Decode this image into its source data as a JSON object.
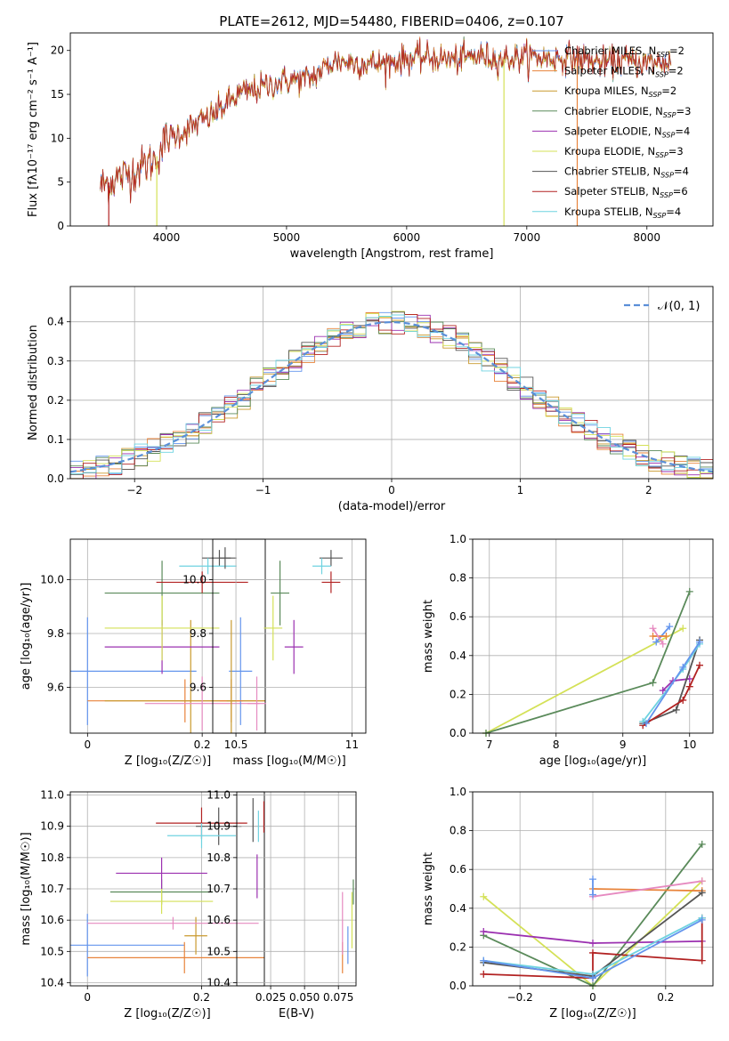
{
  "figure_title": "PLATE=2612, MJD=54480, FIBERID=0406, z=0.107",
  "colors": {
    "Chabrier MILES": "#6495ed",
    "Salpeter MILES": "#e8833a",
    "Kroupa MILES": "#c99a2e",
    "Chabrier ELODIE": "#5a8a5a",
    "Salpeter ELODIE": "#9b30b0",
    "Kroupa ELODIE": "#d4e157",
    "Chabrier STELIB": "#555555",
    "Salpeter STELIB": "#b22222",
    "Kroupa STELIB": "#6fd3e0",
    "pink": "#e68ac0"
  },
  "chart_data": [
    {
      "id": "spectrum",
      "type": "line",
      "xlabel": "wavelength [Angstrom, rest frame]",
      "ylabel": "Flux [fλ10⁻¹⁷ erg cm⁻² s⁻¹ A⁻¹]",
      "xlim": [
        3200,
        8550
      ],
      "ylim": [
        0,
        22
      ],
      "xticks": [
        4000,
        5000,
        6000,
        7000,
        8000
      ],
      "yticks": [
        0,
        5,
        10,
        15,
        20
      ],
      "continuum": [
        [
          3450,
          4.5
        ],
        [
          3600,
          5.5
        ],
        [
          3700,
          6
        ],
        [
          3800,
          6.8
        ],
        [
          3900,
          7.5
        ],
        [
          4000,
          9.8
        ],
        [
          4200,
          11.2
        ],
        [
          4400,
          12.8
        ],
        [
          4600,
          15
        ],
        [
          4800,
          15.8
        ],
        [
          5000,
          16.6
        ],
        [
          5200,
          16.8
        ],
        [
          5400,
          18.8
        ],
        [
          5600,
          18.6
        ],
        [
          5800,
          18.5
        ],
        [
          6000,
          19.1
        ],
        [
          6200,
          19.2
        ],
        [
          6400,
          18.9
        ],
        [
          6600,
          19.4
        ],
        [
          6800,
          19
        ],
        [
          7000,
          19.3
        ],
        [
          7200,
          19.1
        ],
        [
          7400,
          19.2
        ],
        [
          7600,
          18.6
        ],
        [
          7800,
          18.8
        ],
        [
          8000,
          18.6
        ],
        [
          8200,
          18.7
        ]
      ],
      "legend": {
        "placement": "top-right",
        "entries": [
          {
            "label": "Chabrier MILES, N",
            "sub": "SSP",
            "tail": "=2"
          },
          {
            "label": "Salpeter MILES, N",
            "sub": "SSP",
            "tail": "=2"
          },
          {
            "label": "Kroupa MILES, N",
            "sub": "SSP",
            "tail": "=2"
          },
          {
            "label": "Chabrier ELODIE, N",
            "sub": "SSP",
            "tail": "=3"
          },
          {
            "label": "Salpeter ELODIE, N",
            "sub": "SSP",
            "tail": "=4"
          },
          {
            "label": "Kroupa ELODIE, N",
            "sub": "SSP",
            "tail": "=3"
          },
          {
            "label": "Chabrier STELIB, N",
            "sub": "SSP",
            "tail": "=4"
          },
          {
            "label": "Salpeter STELIB, N",
            "sub": "SSP",
            "tail": "=6"
          },
          {
            "label": "Kroupa STELIB, N",
            "sub": "SSP",
            "tail": "=4"
          }
        ]
      }
    },
    {
      "id": "residuals",
      "type": "histogram",
      "xlabel": "(data-model)/error",
      "ylabel": "Normed distribution",
      "xlim": [
        -2.5,
        2.5
      ],
      "ylim": [
        0,
        0.49
      ],
      "xticks": [
        -2,
        -1,
        0,
        1,
        2
      ],
      "yticks": [
        0.0,
        0.1,
        0.2,
        0.3,
        0.4
      ],
      "grid": true,
      "legend_label": "𝒩(0, 1)",
      "gaussian": {
        "mu": 0,
        "sigma": 1
      }
    },
    {
      "id": "age_vs_Z",
      "type": "errorbar",
      "xlabel": "Z [log₁₀(Z/Z☉)]",
      "ylabel": "age  [log₁₀(age/yr)]",
      "xlim": [
        -0.03,
        0.31
      ],
      "ylim": [
        9.43,
        10.15
      ],
      "xticks": [
        0.0,
        0.2
      ],
      "yticks": [
        9.6,
        9.8,
        10.0
      ],
      "grid": true,
      "points": [
        {
          "c": "Chabrier MILES",
          "x": 0.0,
          "y": 9.66,
          "xerr": 0.19,
          "yerr": 0.2
        },
        {
          "c": "Salpeter MILES",
          "x": 0.17,
          "y": 9.55,
          "xerr": 0.17,
          "yerr": 0.08
        },
        {
          "c": "Kroupa MILES",
          "x": 0.18,
          "y": 9.55,
          "xerr": 0.15,
          "yerr": 0.3
        },
        {
          "c": "Chabrier ELODIE",
          "x": 0.13,
          "y": 9.95,
          "xerr": 0.1,
          "yerr": 0.12
        },
        {
          "c": "Salpeter ELODIE",
          "x": 0.13,
          "y": 9.75,
          "xerr": 0.1,
          "yerr": 0.1
        },
        {
          "c": "Kroupa ELODIE",
          "x": 0.13,
          "y": 9.82,
          "xerr": 0.1,
          "yerr": 0.12
        },
        {
          "c": "Chabrier STELIB",
          "x": 0.23,
          "y": 10.08,
          "xerr": 0.03,
          "yerr": 0.03
        },
        {
          "c": "Salpeter STELIB",
          "x": 0.2,
          "y": 9.99,
          "xerr": 0.08,
          "yerr": 0.04
        },
        {
          "c": "Kroupa STELIB",
          "x": 0.21,
          "y": 10.05,
          "xerr": 0.05,
          "yerr": 0.03
        },
        {
          "c": "pink",
          "x": 0.2,
          "y": 9.54,
          "xerr": 0.1,
          "yerr": 0.1
        },
        {
          "c": "Chabrier STELIB",
          "x": 0.24,
          "y": 10.08,
          "xerr": 0.01,
          "yerr": 0.04
        }
      ]
    },
    {
      "id": "age_vs_mass",
      "type": "errorbar",
      "xlabel": "mass [log₁₀(M/M☉)]",
      "ylabel": "",
      "xlim": [
        10.4,
        11.06
      ],
      "ylim": [
        9.43,
        10.15
      ],
      "xticks": [
        10.5,
        11.0
      ],
      "yticks": [
        9.6,
        9.8,
        10.0
      ],
      "grid": true,
      "points": [
        {
          "c": "Chabrier MILES",
          "x": 10.52,
          "y": 9.66,
          "xerr": 0.05,
          "yerr": 0.2
        },
        {
          "c": "Salpeter MILES",
          "x": 10.48,
          "y": 9.55,
          "xerr": 0.05,
          "yerr": 0.08
        },
        {
          "c": "Kroupa MILES",
          "x": 10.48,
          "y": 9.55,
          "xerr": 0.02,
          "yerr": 0.3
        },
        {
          "c": "Chabrier ELODIE",
          "x": 10.69,
          "y": 9.95,
          "xerr": 0.04,
          "yerr": 0.12
        },
        {
          "c": "Salpeter ELODIE",
          "x": 10.75,
          "y": 9.75,
          "xerr": 0.04,
          "yerr": 0.1
        },
        {
          "c": "Kroupa ELODIE",
          "x": 10.66,
          "y": 9.82,
          "xerr": 0.04,
          "yerr": 0.12
        },
        {
          "c": "Chabrier STELIB",
          "x": 10.91,
          "y": 10.08,
          "xerr": 0.05,
          "yerr": 0.03
        },
        {
          "c": "Salpeter STELIB",
          "x": 10.91,
          "y": 9.99,
          "xerr": 0.04,
          "yerr": 0.04
        },
        {
          "c": "Kroupa STELIB",
          "x": 10.87,
          "y": 10.05,
          "xerr": 0.04,
          "yerr": 0.03
        },
        {
          "c": "pink",
          "x": 10.59,
          "y": 9.54,
          "xerr": 0.04,
          "yerr": 0.1
        }
      ]
    },
    {
      "id": "massweight_vs_age",
      "type": "line",
      "xlabel": "age  [log₁₀(age/yr)]",
      "ylabel": "mass weight",
      "xlim": [
        6.75,
        10.35
      ],
      "ylim": [
        0,
        1.0
      ],
      "xticks": [
        7,
        8,
        9,
        10
      ],
      "yticks": [
        0.0,
        0.2,
        0.4,
        0.6,
        0.8,
        1.0
      ],
      "grid": true,
      "series": [
        {
          "c": "Kroupa ELODIE",
          "x": [
            6.95,
            9.9
          ],
          "y": [
            0.0,
            0.54
          ]
        },
        {
          "c": "Chabrier ELODIE",
          "x": [
            6.95,
            9.45,
            10.0
          ],
          "y": [
            0.0,
            0.26,
            0.73
          ]
        },
        {
          "c": "Salpeter ELODIE",
          "x": [
            9.6,
            9.75,
            10.0
          ],
          "y": [
            0.22,
            0.27,
            0.28
          ]
        },
        {
          "c": "Chabrier MILES",
          "x": [
            9.5,
            9.7
          ],
          "y": [
            0.47,
            0.55
          ]
        },
        {
          "c": "Salpeter MILES",
          "x": [
            9.45,
            9.65
          ],
          "y": [
            0.5,
            0.5
          ]
        },
        {
          "c": "pink",
          "x": [
            9.45,
            9.6
          ],
          "y": [
            0.54,
            0.46
          ]
        },
        {
          "c": "Chabrier STELIB",
          "x": [
            9.3,
            9.8,
            10.15
          ],
          "y": [
            0.05,
            0.12,
            0.48
          ]
        },
        {
          "c": "Salpeter STELIB",
          "x": [
            9.3,
            9.9,
            10.0,
            10.15
          ],
          "y": [
            0.04,
            0.17,
            0.24,
            0.35
          ]
        },
        {
          "c": "Kroupa STELIB",
          "x": [
            9.3,
            9.9,
            10.15
          ],
          "y": [
            0.06,
            0.33,
            0.46
          ]
        },
        {
          "c": "Chabrier MILES",
          "x": [
            9.35,
            9.9,
            10.15
          ],
          "y": [
            0.05,
            0.34,
            0.47
          ]
        }
      ]
    },
    {
      "id": "mass_vs_Z",
      "type": "errorbar",
      "xlabel": "Z [log₁₀(Z/Z☉)]",
      "ylabel": "mass [log₁₀(M/M☉)]",
      "xlim": [
        -0.03,
        0.31
      ],
      "ylim": [
        10.39,
        11.01
      ],
      "xticks": [
        0.0,
        0.2
      ],
      "yticks": [
        10.4,
        10.5,
        10.6,
        10.7,
        10.8,
        10.9,
        11.0
      ],
      "grid": true,
      "points": [
        {
          "c": "Chabrier MILES",
          "x": 0.0,
          "y": 10.52,
          "xerr": 0.17,
          "yerr": 0.1
        },
        {
          "c": "Salpeter MILES",
          "x": 0.17,
          "y": 10.48,
          "xerr": 0.17,
          "yerr": 0.05
        },
        {
          "c": "Kroupa MILES",
          "x": 0.19,
          "y": 10.55,
          "xerr": 0.02,
          "yerr": 0.06
        },
        {
          "c": "Chabrier ELODIE",
          "x": 0.13,
          "y": 10.69,
          "xerr": 0.09,
          "yerr": 0.04
        },
        {
          "c": "Salpeter ELODIE",
          "x": 0.13,
          "y": 10.75,
          "xerr": 0.08,
          "yerr": 0.05
        },
        {
          "c": "Kroupa ELODIE",
          "x": 0.13,
          "y": 10.66,
          "xerr": 0.09,
          "yerr": 0.04
        },
        {
          "c": "Chabrier STELIB",
          "x": 0.23,
          "y": 10.9,
          "xerr": 0.04,
          "yerr": 0.06
        },
        {
          "c": "Salpeter STELIB",
          "x": 0.2,
          "y": 10.91,
          "xerr": 0.08,
          "yerr": 0.05
        },
        {
          "c": "Kroupa STELIB",
          "x": 0.2,
          "y": 10.87,
          "xerr": 0.06,
          "yerr": 0.04
        },
        {
          "c": "pink",
          "x": 0.15,
          "y": 10.59,
          "xerr": 0.15,
          "yerr": 0.02
        }
      ]
    },
    {
      "id": "mass_vs_ebv",
      "type": "errorbar",
      "xlabel": "E(B-V)",
      "ylabel": "",
      "xlim": [
        0.0,
        0.088
      ],
      "ylim": [
        10.39,
        11.01
      ],
      "xticks": [
        0.025,
        0.05,
        0.075
      ],
      "xticklabels": [
        "0.025",
        "0.050",
        "0.075"
      ],
      "yticks": [
        10.4,
        10.5,
        10.6,
        10.7,
        10.8,
        10.9,
        11.0
      ],
      "grid": true,
      "points": [
        {
          "c": "Chabrier MILES",
          "x": 0.082,
          "y": 10.52,
          "xerr": 0,
          "yerr": 0.06
        },
        {
          "c": "Salpeter MILES",
          "x": 0.078,
          "y": 10.48,
          "xerr": 0,
          "yerr": 0.05
        },
        {
          "c": "Kroupa ELODIE",
          "x": 0.085,
          "y": 10.6,
          "xerr": 0,
          "yerr": 0.09
        },
        {
          "c": "Chabrier ELODIE",
          "x": 0.086,
          "y": 10.69,
          "xerr": 0,
          "yerr": 0.04
        },
        {
          "c": "pink",
          "x": 0.078,
          "y": 10.59,
          "xerr": 0,
          "yerr": 0.1
        },
        {
          "c": "Salpeter ELODIE",
          "x": 0.015,
          "y": 10.74,
          "xerr": 0,
          "yerr": 0.07
        },
        {
          "c": "Chabrier STELIB",
          "x": 0.012,
          "y": 10.92,
          "xerr": 0,
          "yerr": 0.07
        },
        {
          "c": "Salpeter STELIB",
          "x": 0.02,
          "y": 10.93,
          "xerr": 0,
          "yerr": 0.05
        },
        {
          "c": "Kroupa STELIB",
          "x": 0.016,
          "y": 10.9,
          "xerr": 0,
          "yerr": 0.05
        }
      ]
    },
    {
      "id": "massweight_vs_Z",
      "type": "line",
      "xlabel": "Z [log₁₀(Z/Z☉)]",
      "ylabel": "mass weight",
      "xlim": [
        -0.33,
        0.33
      ],
      "ylim": [
        0,
        1.0
      ],
      "xticks": [
        -0.2,
        0.0,
        0.2
      ],
      "yticks": [
        0.0,
        0.2,
        0.4,
        0.6,
        0.8,
        1.0
      ],
      "grid": true,
      "series": [
        {
          "c": "Kroupa ELODIE",
          "x": [
            -0.3,
            0.0,
            0.3
          ],
          "y": [
            0.46,
            0.0,
            0.54
          ]
        },
        {
          "c": "Chabrier ELODIE",
          "x": [
            -0.3,
            0.0,
            0.3
          ],
          "y": [
            0.26,
            0.0,
            0.73
          ]
        },
        {
          "c": "Salpeter ELODIE",
          "x": [
            -0.3,
            0.0,
            0.3
          ],
          "y": [
            0.28,
            0.22,
            0.23
          ]
        },
        {
          "c": "Salpeter MILES",
          "x": [
            0.0,
            0.3
          ],
          "y": [
            0.5,
            0.49
          ]
        },
        {
          "c": "pink",
          "x": [
            0.0,
            0.3
          ],
          "y": [
            0.46,
            0.54
          ]
        },
        {
          "c": "Chabrier MILES",
          "x": [
            0.0,
            0.0
          ],
          "y": [
            0.47,
            0.55
          ]
        },
        {
          "c": "Salpeter STELIB",
          "x": [
            -0.3,
            0.0,
            0.0,
            0.3,
            0.3
          ],
          "y": [
            0.06,
            0.04,
            0.17,
            0.13,
            0.35
          ]
        },
        {
          "c": "Chabrier STELIB",
          "x": [
            -0.3,
            0.0,
            0.3
          ],
          "y": [
            0.12,
            0.05,
            0.48
          ]
        },
        {
          "c": "Kroupa STELIB",
          "x": [
            -0.3,
            0.0,
            0.3
          ],
          "y": [
            0.13,
            0.06,
            0.35
          ]
        },
        {
          "c": "Chabrier MILES",
          "x": [
            -0.3,
            0.0,
            0.3
          ],
          "y": [
            0.13,
            0.04,
            0.34
          ]
        }
      ]
    }
  ]
}
